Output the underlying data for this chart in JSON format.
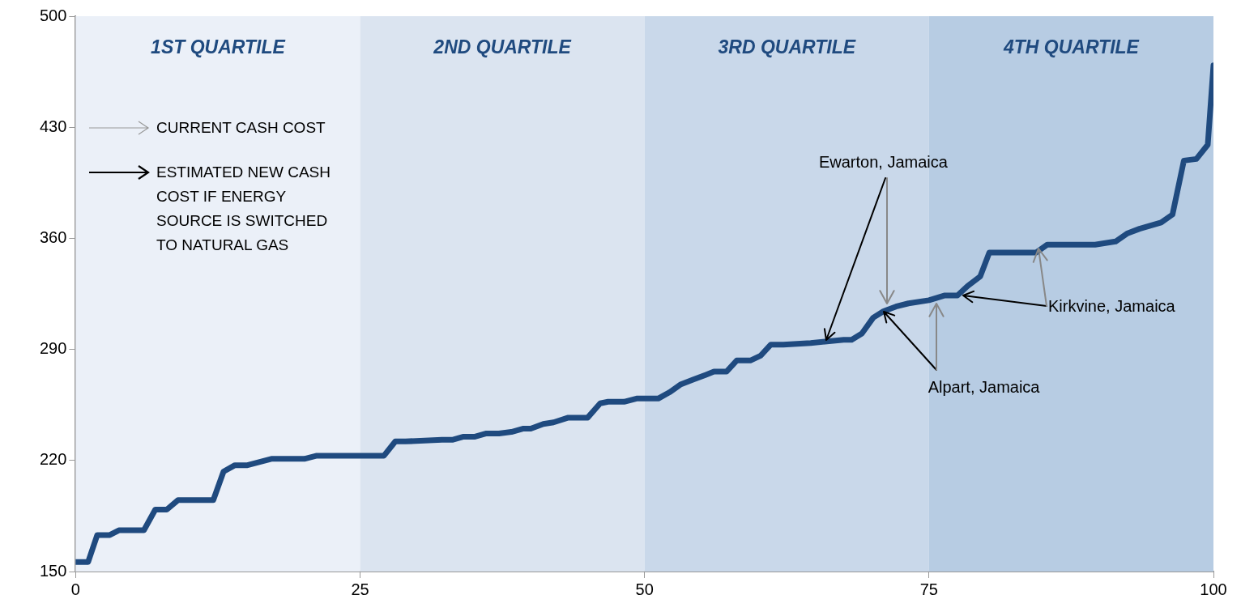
{
  "chart_data": {
    "type": "line",
    "series": [
      {
        "color": "#1f4a7f",
        "x": [
          0,
          1.1,
          1.9,
          3,
          3.8,
          6,
          7,
          8,
          9,
          12.1,
          13,
          14,
          15.1,
          17.2,
          20.1,
          21.2,
          25.8,
          27.1,
          28.1,
          29,
          32.2,
          33.1,
          34.1,
          35.1,
          36.1,
          37.2,
          38.3,
          39.3,
          40,
          41.1,
          42,
          43.3,
          45,
          46.1,
          46.8,
          48.2,
          49.3,
          51.2,
          52.2,
          53.2,
          54.3,
          55.4,
          56.1,
          57.2,
          58.1,
          59.3,
          60.2,
          61.1,
          62.2,
          64.6,
          67.5,
          68.2,
          69.1,
          70.1,
          71,
          72.1,
          73.2,
          75,
          76.4,
          77.5,
          78.4,
          79.5,
          80.3,
          81.5,
          84.4,
          85.4,
          89.6,
          91.4,
          92.4,
          93.5,
          95.4,
          96.4,
          97.4,
          98.5,
          99.5,
          100
        ],
        "values": [
          156,
          156,
          173,
          173,
          176,
          176,
          189,
          189,
          195,
          195,
          213,
          217,
          217,
          221,
          221,
          223,
          223,
          223,
          232,
          232,
          233,
          233,
          235,
          235,
          237,
          237,
          238,
          240,
          240,
          243,
          244,
          247,
          247,
          256,
          257,
          257,
          259,
          259,
          263,
          268,
          271,
          274,
          276,
          276,
          283,
          283,
          286,
          293,
          293,
          294,
          296,
          296,
          300,
          310,
          314,
          317,
          319,
          321,
          324,
          324,
          330,
          336,
          351,
          351,
          351,
          356,
          356,
          358,
          363,
          366,
          370,
          375,
          409,
          410,
          419,
          469
        ]
      }
    ],
    "xlim": [
      0,
      100
    ],
    "xticks": [
      0,
      25,
      50,
      75,
      100
    ],
    "ylim": [
      150,
      500
    ],
    "yticks": [
      150,
      220,
      290,
      360,
      430,
      500
    ],
    "grid": false,
    "marker": "none",
    "line_style": "solid",
    "bands": [
      {
        "axis": "x",
        "from": 0,
        "to": 25,
        "label": "1ST QUARTILE",
        "color": "#ebf0f8"
      },
      {
        "axis": "x",
        "from": 25,
        "to": 50,
        "label": "2ND QUARTILE",
        "color": "#dbe4f0"
      },
      {
        "axis": "x",
        "from": 50,
        "to": 75,
        "label": "3RD QUARTILE",
        "color": "#c9d8ea"
      },
      {
        "axis": "x",
        "from": 75,
        "to": 100,
        "label": "4TH QUARTILE",
        "color": "#b7cce3"
      }
    ],
    "annotations": [
      "CURRENT CASH COST",
      "ESTIMATED NEW CASH COST IF ENERGY SOURCE IS SWITCHED TO NATURAL GAS",
      {
        "text": "Ewarton, Jamaica",
        "x": 66,
        "y": 296
      },
      {
        "text": "Alpart, Jamaica",
        "x": 71,
        "y": 314
      },
      {
        "text": "Kirkvine, Jamaica",
        "x": 78,
        "y": 324
      }
    ]
  }
}
